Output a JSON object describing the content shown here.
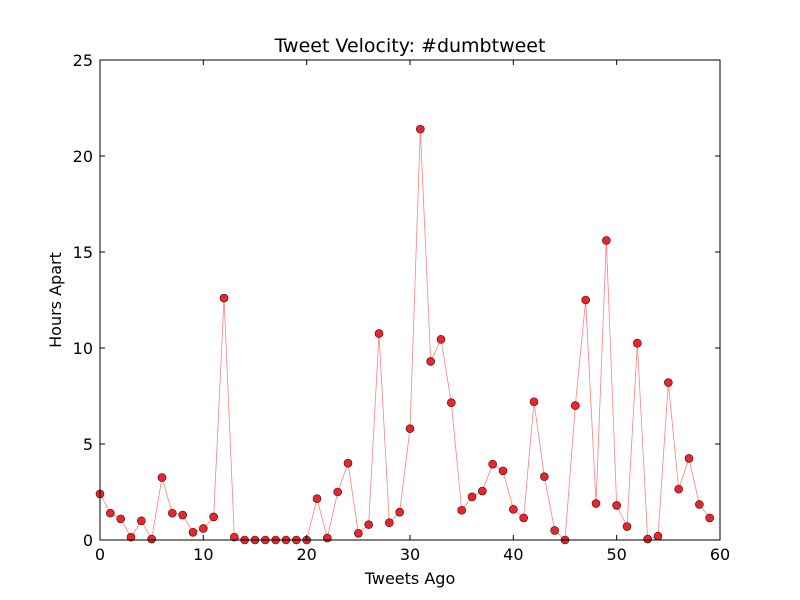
{
  "chart_data": {
    "type": "line",
    "title": "Tweet Velocity: #dumbtweet",
    "xlabel": "Tweets Ago",
    "ylabel": "Hours Apart",
    "xlim": [
      0,
      60
    ],
    "ylim": [
      0,
      25
    ],
    "xticks": [
      0,
      10,
      20,
      30,
      40,
      50,
      60
    ],
    "yticks": [
      0,
      5,
      10,
      15,
      20,
      25
    ],
    "grid": false,
    "line_color": "#ff8080",
    "marker_color": "#e8262d",
    "marker_edge": "#3a0a0a",
    "series": [
      {
        "x": [
          0,
          1,
          2,
          3,
          4,
          5,
          6,
          7,
          8,
          9,
          10,
          11,
          12,
          13,
          14,
          15,
          16,
          17,
          18,
          19,
          20,
          21,
          22,
          23,
          24,
          25,
          26,
          27,
          28,
          29,
          30,
          31,
          32,
          33,
          34,
          35,
          36,
          37,
          38,
          39,
          40,
          41,
          42,
          43,
          44,
          45,
          46,
          47,
          48,
          49,
          50,
          51,
          52,
          53,
          54,
          55,
          56,
          57,
          58,
          59
        ],
        "y": [
          2.4,
          1.4,
          1.1,
          0.15,
          1.0,
          0.05,
          3.25,
          1.4,
          1.3,
          0.4,
          0.6,
          1.2,
          12.6,
          0.15,
          0.0,
          0.0,
          0.0,
          0.0,
          0.0,
          0.0,
          0.0,
          2.15,
          0.1,
          2.5,
          4.0,
          0.35,
          0.8,
          10.75,
          0.9,
          1.45,
          5.8,
          21.4,
          9.3,
          10.45,
          7.15,
          1.55,
          2.25,
          2.55,
          3.95,
          3.6,
          1.6,
          1.15,
          7.2,
          3.3,
          0.5,
          0.0,
          7.0,
          12.5,
          1.9,
          15.6,
          1.8,
          0.7,
          10.25,
          0.05,
          0.2,
          8.2,
          2.65,
          4.25,
          1.85,
          1.15
        ]
      }
    ]
  }
}
